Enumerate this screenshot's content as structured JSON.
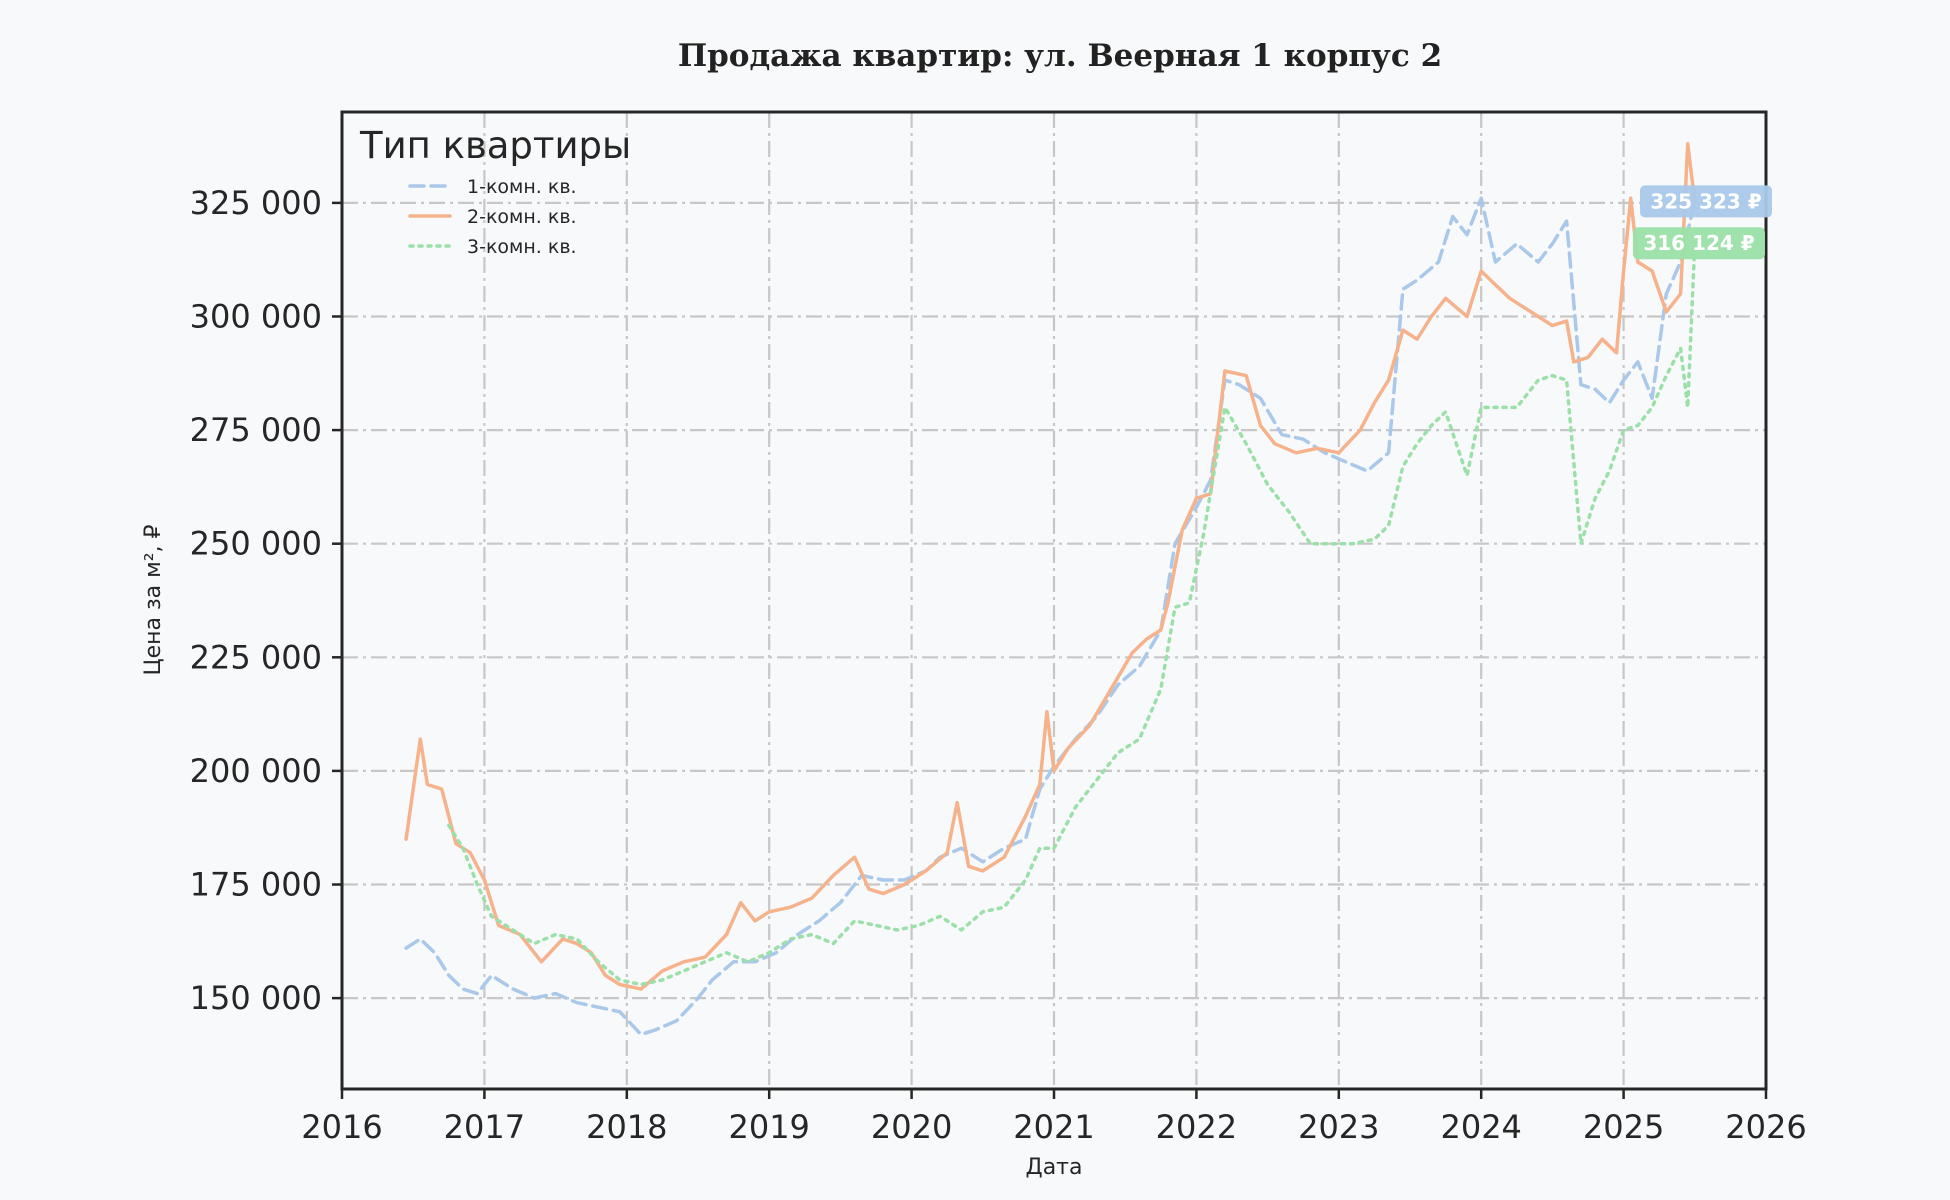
{
  "chart_data": {
    "type": "line",
    "title": "Продажа квартир: ул. Веерная 1 корпус 2",
    "xlabel": "Дата",
    "ylabel": "Цена за м², ₽",
    "xlim": [
      2016.0,
      2026.0
    ],
    "ylim": [
      130000,
      345000
    ],
    "x_ticks": [
      "2016",
      "2017",
      "2018",
      "2019",
      "2020",
      "2021",
      "2022",
      "2023",
      "2024",
      "2025",
      "2026"
    ],
    "y_ticks": [
      {
        "value": 150000,
        "label": "150 000"
      },
      {
        "value": 175000,
        "label": "175 000"
      },
      {
        "value": 200000,
        "label": "200 000"
      },
      {
        "value": 225000,
        "label": "225 000"
      },
      {
        "value": 250000,
        "label": "250 000"
      },
      {
        "value": 275000,
        "label": "275 000"
      },
      {
        "value": 300000,
        "label": "300 000"
      },
      {
        "value": 325000,
        "label": "325 000"
      }
    ],
    "grid": true,
    "legend": {
      "title": "Тип квартиры",
      "position": "top-left"
    },
    "series": [
      {
        "name": "1-комн. кв.",
        "color": "#a9c8ea",
        "style": "dashed",
        "x": [
          2016.45,
          2016.55,
          2016.65,
          2016.75,
          2016.85,
          2016.95,
          2017.05,
          2017.2,
          2017.35,
          2017.5,
          2017.65,
          2017.8,
          2017.95,
          2018.1,
          2018.2,
          2018.35,
          2018.5,
          2018.6,
          2018.75,
          2018.9,
          2019.05,
          2019.2,
          2019.35,
          2019.5,
          2019.65,
          2019.8,
          2019.95,
          2020.1,
          2020.2,
          2020.35,
          2020.5,
          2020.65,
          2020.8,
          2020.9,
          2021.0,
          2021.15,
          2021.3,
          2021.45,
          2021.6,
          2021.75,
          2021.85,
          2022.0,
          2022.1,
          2022.2,
          2022.3,
          2022.45,
          2022.6,
          2022.75,
          2022.9,
          2023.05,
          2023.2,
          2023.35,
          2023.45,
          2023.55,
          2023.7,
          2023.8,
          2023.9,
          2024.0,
          2024.1,
          2024.25,
          2024.4,
          2024.5,
          2024.6,
          2024.7,
          2024.8,
          2024.9,
          2025.0,
          2025.1,
          2025.2,
          2025.3,
          2025.4,
          2025.5
        ],
        "y": [
          161000,
          163000,
          160000,
          155000,
          152000,
          151000,
          155000,
          152000,
          150000,
          151000,
          149000,
          148000,
          147000,
          142000,
          143000,
          145000,
          150000,
          154000,
          158000,
          158000,
          160000,
          164000,
          167000,
          171000,
          177000,
          176000,
          176000,
          178000,
          181000,
          183000,
          180000,
          183000,
          185000,
          196000,
          201000,
          207000,
          212000,
          219000,
          223000,
          231000,
          250000,
          258000,
          264000,
          286000,
          285000,
          282000,
          274000,
          273000,
          270000,
          268000,
          266000,
          270000,
          306000,
          308000,
          312000,
          322000,
          318000,
          326000,
          312000,
          316000,
          312000,
          316000,
          321000,
          285000,
          284000,
          281000,
          286000,
          290000,
          282000,
          305000,
          312000,
          325323
        ]
      },
      {
        "name": "2-комн. кв.",
        "color": "#f6b28b",
        "style": "solid",
        "x": [
          2016.45,
          2016.5,
          2016.55,
          2016.6,
          2016.7,
          2016.8,
          2016.9,
          2017.0,
          2017.1,
          2017.25,
          2017.4,
          2017.55,
          2017.65,
          2017.75,
          2017.85,
          2017.95,
          2018.1,
          2018.25,
          2018.4,
          2018.55,
          2018.7,
          2018.8,
          2018.9,
          2019.0,
          2019.15,
          2019.3,
          2019.45,
          2019.6,
          2019.7,
          2019.8,
          2019.95,
          2020.1,
          2020.25,
          2020.32,
          2020.4,
          2020.5,
          2020.65,
          2020.8,
          2020.9,
          2020.95,
          2021.0,
          2021.1,
          2021.25,
          2021.4,
          2021.55,
          2021.65,
          2021.75,
          2021.8,
          2021.9,
          2022.0,
          2022.1,
          2022.2,
          2022.35,
          2022.45,
          2022.55,
          2022.7,
          2022.85,
          2023.0,
          2023.15,
          2023.25,
          2023.35,
          2023.45,
          2023.55,
          2023.65,
          2023.75,
          2023.9,
          2024.0,
          2024.1,
          2024.2,
          2024.35,
          2024.5,
          2024.6,
          2024.65,
          2024.75,
          2024.85,
          2024.95,
          2025.0,
          2025.05,
          2025.1,
          2025.2,
          2025.3,
          2025.4,
          2025.45,
          2025.5
        ],
        "y": [
          185000,
          196000,
          207000,
          197000,
          196000,
          184000,
          182000,
          176000,
          166000,
          164000,
          158000,
          163000,
          162000,
          160000,
          155000,
          153000,
          152000,
          156000,
          158000,
          159000,
          164000,
          171000,
          167000,
          169000,
          170000,
          172000,
          177000,
          181000,
          174000,
          173000,
          175000,
          178000,
          182000,
          193000,
          179000,
          178000,
          181000,
          190000,
          197000,
          213000,
          200000,
          205000,
          210000,
          218000,
          226000,
          229000,
          231000,
          237000,
          253000,
          260000,
          261000,
          288000,
          287000,
          276000,
          272000,
          270000,
          271000,
          270000,
          275000,
          281000,
          286000,
          297000,
          295000,
          300000,
          304000,
          300000,
          310000,
          307000,
          304000,
          301000,
          298000,
          299000,
          290000,
          291000,
          295000,
          292000,
          310000,
          326000,
          312000,
          310000,
          301000,
          305000,
          338000,
          325323
        ]
      },
      {
        "name": "3-комн. кв.",
        "color": "#9be0a8",
        "style": "dotted",
        "x": [
          2016.75,
          2016.85,
          2016.95,
          2017.05,
          2017.2,
          2017.35,
          2017.5,
          2017.65,
          2017.8,
          2017.95,
          2018.1,
          2018.25,
          2018.4,
          2018.55,
          2018.7,
          2018.85,
          2019.0,
          2019.15,
          2019.3,
          2019.45,
          2019.6,
          2019.75,
          2019.9,
          2020.05,
          2020.2,
          2020.35,
          2020.5,
          2020.65,
          2020.8,
          2020.9,
          2021.0,
          2021.15,
          2021.3,
          2021.45,
          2021.6,
          2021.75,
          2021.85,
          2021.95,
          2022.05,
          2022.2,
          2022.35,
          2022.5,
          2022.65,
          2022.8,
          2022.95,
          2023.1,
          2023.25,
          2023.35,
          2023.45,
          2023.55,
          2023.65,
          2023.75,
          2023.9,
          2024.0,
          2024.1,
          2024.25,
          2024.4,
          2024.5,
          2024.6,
          2024.7,
          2024.8,
          2024.9,
          2025.0,
          2025.1,
          2025.2,
          2025.3,
          2025.4,
          2025.45,
          2025.5
        ],
        "y": [
          188000,
          183000,
          175000,
          168000,
          165000,
          162000,
          164000,
          163000,
          158000,
          154000,
          153000,
          154000,
          156000,
          158000,
          160000,
          158000,
          160000,
          163000,
          164000,
          162000,
          167000,
          166000,
          165000,
          166000,
          168000,
          165000,
          169000,
          170000,
          176000,
          183000,
          183000,
          192000,
          198000,
          204000,
          207000,
          218000,
          236000,
          237000,
          252000,
          280000,
          272000,
          263000,
          257000,
          250000,
          250000,
          250000,
          251000,
          254000,
          267000,
          272000,
          276000,
          279000,
          265000,
          280000,
          280000,
          280000,
          286000,
          287000,
          286000,
          250000,
          260000,
          266000,
          275000,
          276000,
          280000,
          287000,
          293000,
          280000,
          316124
        ]
      }
    ],
    "annotations": [
      {
        "series": "1-комн. кв.",
        "value": 325323,
        "label": "325 323 ₽"
      },
      {
        "series": "3-комн. кв.",
        "value": 316124,
        "label": "316 124 ₽"
      }
    ]
  }
}
